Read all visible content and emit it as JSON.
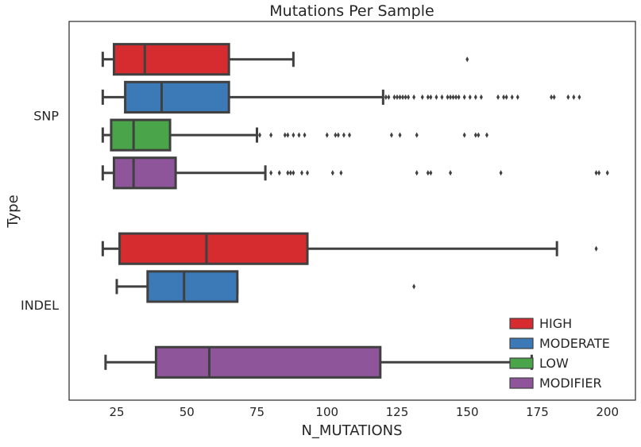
{
  "chart_data": {
    "type": "boxplot",
    "orientation": "horizontal",
    "title": "Mutations Per Sample",
    "xlabel": "N_MUTATIONS",
    "ylabel": "Type",
    "xlim": [
      8,
      210
    ],
    "xticks": [
      25,
      50,
      75,
      100,
      125,
      150,
      175,
      200
    ],
    "categories": [
      "SNP",
      "INDEL"
    ],
    "hue_order": [
      "HIGH",
      "MODERATE",
      "LOW",
      "MODIFIER"
    ],
    "colors": {
      "HIGH": "#d62c2f",
      "MODERATE": "#3b7ab6",
      "LOW": "#4aa54a",
      "MODIFIER": "#8e559b"
    },
    "edge_color": "#404040",
    "grid": false,
    "legend": {
      "position": "lower-right",
      "entries": [
        "HIGH",
        "MODERATE",
        "LOW",
        "MODIFIER"
      ]
    },
    "boxes": [
      {
        "category": "SNP",
        "hue": "HIGH",
        "whisker_low": 20,
        "q1": 24,
        "median": 35,
        "q3": 65,
        "whisker_high": 88,
        "outliers": [
          150
        ]
      },
      {
        "category": "SNP",
        "hue": "MODERATE",
        "whisker_low": 20,
        "q1": 28,
        "median": 41,
        "q3": 65,
        "whisker_high": 120,
        "outliers": [
          121,
          122,
          124,
          125,
          126,
          127,
          128,
          129,
          131,
          134,
          136,
          137,
          139,
          141,
          143,
          144,
          145,
          146,
          147,
          149,
          151,
          153,
          155,
          161,
          163,
          164,
          166,
          168,
          180,
          181,
          186,
          188,
          190
        ]
      },
      {
        "category": "SNP",
        "hue": "LOW",
        "whisker_low": 20,
        "q1": 23,
        "median": 31,
        "q3": 44,
        "whisker_high": 75,
        "outliers": [
          76,
          80,
          85,
          86,
          88,
          90,
          92,
          100,
          103,
          104,
          106,
          108,
          123,
          126,
          132,
          149,
          153,
          154,
          157
        ]
      },
      {
        "category": "SNP",
        "hue": "MODIFIER",
        "whisker_low": 20,
        "q1": 24,
        "median": 31,
        "q3": 46,
        "whisker_high": 78,
        "outliers": [
          80,
          83,
          86,
          87,
          88,
          91,
          93,
          102,
          105,
          132,
          136,
          137,
          144,
          162,
          196,
          197,
          200
        ]
      },
      {
        "category": "INDEL",
        "hue": "HIGH",
        "whisker_low": 20,
        "q1": 26,
        "median": 57,
        "q3": 93,
        "whisker_high": 182,
        "outliers": [
          196
        ]
      },
      {
        "category": "INDEL",
        "hue": "MODERATE",
        "whisker_low": 25,
        "q1": 36,
        "median": 49,
        "q3": 68,
        "whisker_high": 68,
        "outliers": [
          131
        ]
      },
      {
        "category": "INDEL",
        "hue": "MODIFIER",
        "whisker_low": 21,
        "q1": 39,
        "median": 58,
        "q3": 119,
        "whisker_high": 173,
        "outliers": []
      }
    ]
  }
}
